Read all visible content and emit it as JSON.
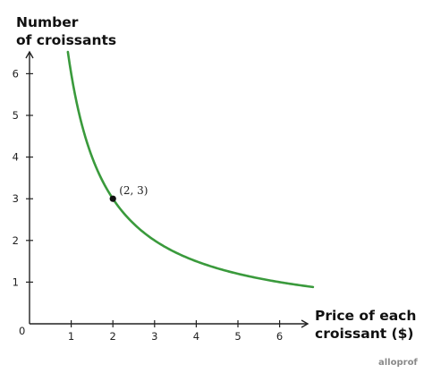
{
  "chart_data": {
    "type": "line",
    "xlabel": [
      "Price of each",
      "croissant ($)"
    ],
    "ylabel": [
      "Number",
      "of croissants"
    ],
    "xlim": [
      0,
      7
    ],
    "ylim": [
      0,
      6.5
    ],
    "x_ticks": [
      1,
      2,
      3,
      4,
      5,
      6
    ],
    "y_ticks": [
      1,
      2,
      3,
      4,
      5,
      6
    ],
    "origin_label": "0",
    "grid": false,
    "series": [
      {
        "function": "y = 6 / x",
        "x_range": [
          0.92,
          6.8
        ],
        "color": "#3a9a3c"
      }
    ],
    "highlighted_point": {
      "x": 2,
      "y": 3,
      "label": "(2, 3)"
    }
  },
  "watermark": "alloprof"
}
